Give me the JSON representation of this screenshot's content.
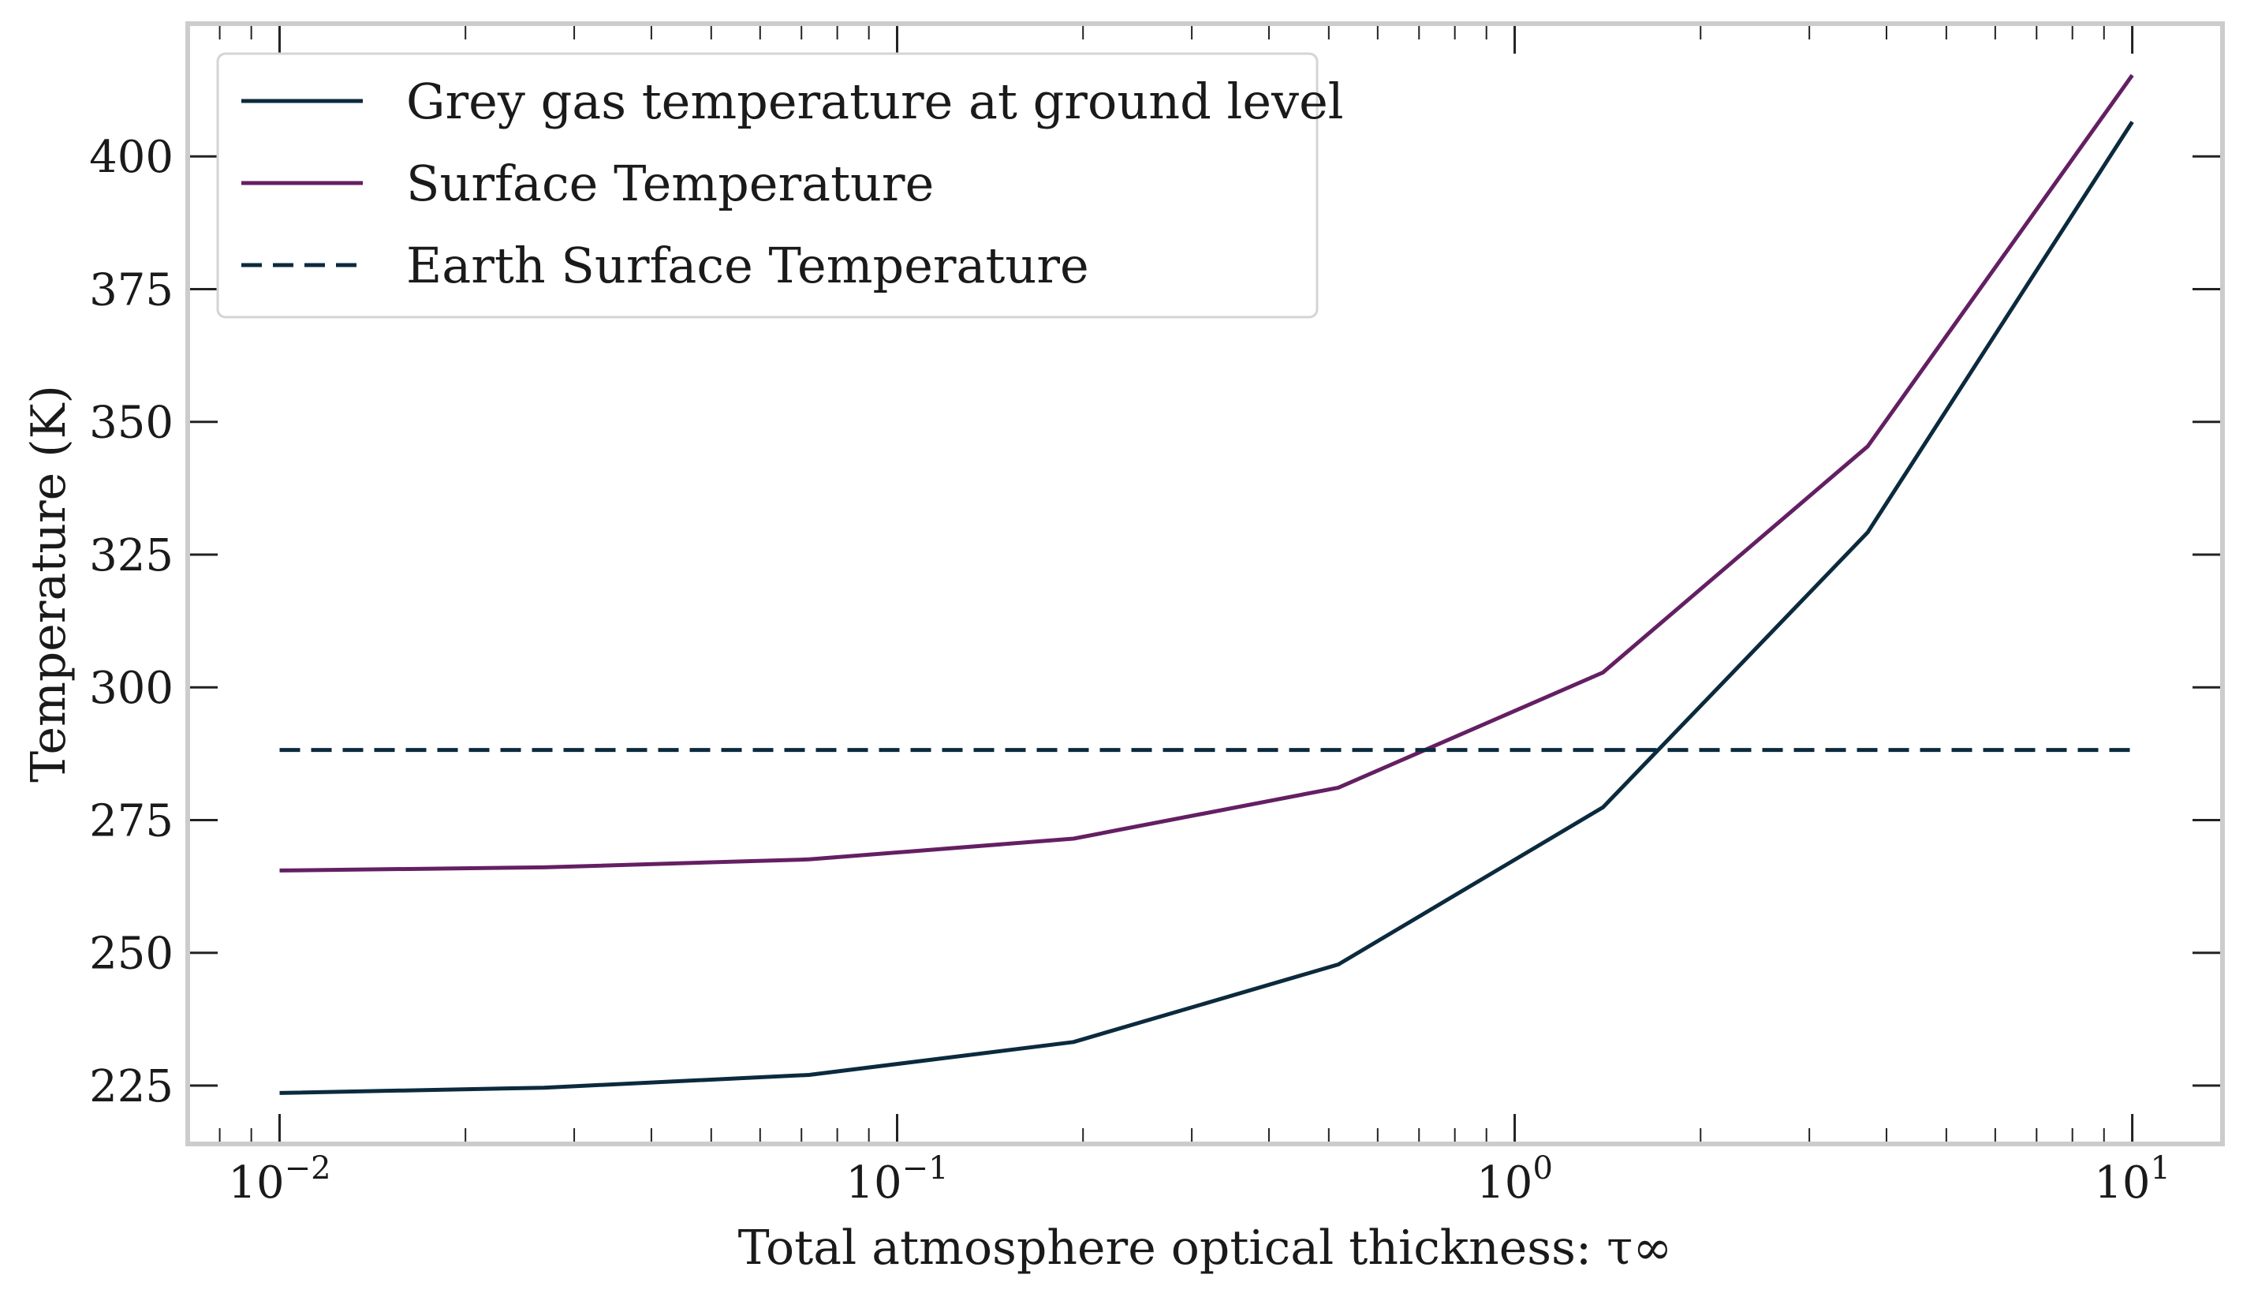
{
  "chart_data": {
    "type": "line",
    "xscale": "log",
    "xlim": [
      0.0071,
      14.0
    ],
    "ylim": [
      214,
      425
    ],
    "grid": false,
    "legend_position": "top-left",
    "xlabel": "Total atmosphere optical thickness: τ∞",
    "ylabel": "Temperature (K)",
    "x_ticks": [
      {
        "value": 0.01,
        "base": "10",
        "exp": "−2"
      },
      {
        "value": 0.1,
        "base": "10",
        "exp": "−1"
      },
      {
        "value": 1,
        "base": "10",
        "exp": "0"
      },
      {
        "value": 10,
        "base": "10",
        "exp": "1"
      }
    ],
    "y_ticks": [
      225,
      250,
      275,
      300,
      325,
      350,
      375,
      400
    ],
    "series": [
      {
        "name": "Grey gas temperature at ground level",
        "color": "#0b2a3d",
        "dash": "solid",
        "x": [
          0.01,
          0.0268,
          0.072,
          0.193,
          0.518,
          1.39,
          3.73,
          10.0
        ],
        "y": [
          223.6,
          224.6,
          227.0,
          233.2,
          247.8,
          277.4,
          329.2,
          406.5
        ]
      },
      {
        "name": "Surface Temperature",
        "color": "#641f63",
        "dash": "solid",
        "x": [
          0.01,
          0.0268,
          0.072,
          0.193,
          0.518,
          1.39,
          3.73,
          10.0
        ],
        "y": [
          265.5,
          266.1,
          267.6,
          271.5,
          281.1,
          302.8,
          345.4,
          415.3
        ]
      },
      {
        "name": "Earth Surface Temperature",
        "color": "#0b2a3d",
        "dash": "dashed",
        "x": [
          0.01,
          10.0
        ],
        "y": [
          288.2,
          288.2
        ]
      }
    ]
  }
}
